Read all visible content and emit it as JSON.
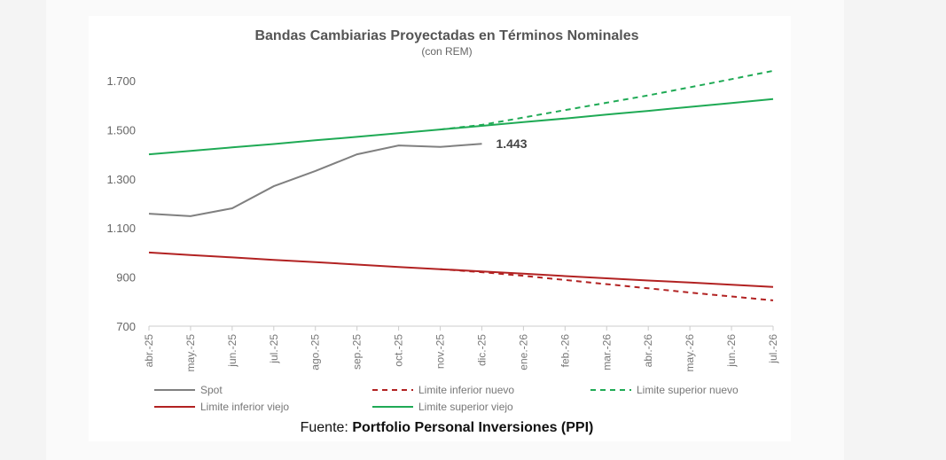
{
  "chart_data": {
    "type": "line",
    "title": "Bandas Cambiarias Proyectadas en Términos Nominales",
    "subtitle": "(con REM)",
    "xlabel": "",
    "ylabel": "",
    "ylim": [
      700,
      1700
    ],
    "yticks": [
      700,
      900,
      1100,
      1300,
      1500,
      1700
    ],
    "ytick_labels": [
      "700",
      "900",
      "1.100",
      "1.300",
      "1.500",
      "1.700"
    ],
    "categories": [
      "abr.-25",
      "may.-25",
      "jun.-25",
      "jul.-25",
      "ago.-25",
      "sep.-25",
      "oct.-25",
      "nov.-25",
      "dic.-25",
      "ene.-26",
      "feb.-26",
      "mar.-26",
      "abr.-26",
      "may.-26",
      "jun.-26",
      "jul.-26"
    ],
    "grid": false,
    "legend_position": "bottom",
    "series": [
      {
        "name": "Spot",
        "color": "#808080",
        "dash": false,
        "values": [
          1158,
          1148,
          1180,
          1270,
          1332,
          1400,
          1436,
          1430,
          1443,
          null,
          null,
          null,
          null,
          null,
          null,
          null
        ]
      },
      {
        "name": "Limite inferior nuevo",
        "color": "#b22222",
        "dash": true,
        "values": [
          null,
          null,
          null,
          null,
          null,
          null,
          null,
          932,
          920,
          905,
          888,
          871,
          854,
          837,
          821,
          805
        ]
      },
      {
        "name": "Limite superior nuevo",
        "color": "#1faa55",
        "dash": true,
        "values": [
          null,
          null,
          null,
          null,
          null,
          null,
          null,
          1501,
          1520,
          1550,
          1580,
          1610,
          1640,
          1673,
          1706,
          1740
        ]
      },
      {
        "name": "Limite inferior viejo",
        "color": "#b22222",
        "dash": false,
        "values": [
          1000,
          990,
          980,
          970,
          961,
          951,
          941,
          932,
          923,
          914,
          904,
          895,
          886,
          878,
          869,
          860
        ]
      },
      {
        "name": "Limite superior viejo",
        "color": "#1faa55",
        "dash": false,
        "values": [
          1400,
          1414,
          1428,
          1442,
          1457,
          1471,
          1486,
          1501,
          1516,
          1531,
          1546,
          1562,
          1577,
          1593,
          1609,
          1625
        ]
      }
    ],
    "annotations": [
      {
        "text": "1.443",
        "category": "dic.-25",
        "value": 1443
      }
    ]
  },
  "source": {
    "prefix": "Fuente: ",
    "name": "Portfolio Personal Inversiones (PPI)"
  }
}
